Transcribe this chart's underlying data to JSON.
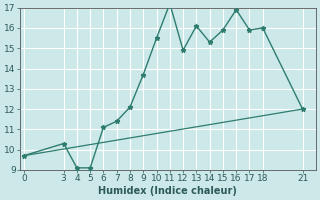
{
  "title": "",
  "xlabel": "Humidex (Indice chaleur)",
  "bg_color": "#cce8e8",
  "grid_color": "#ffffff",
  "line_color": "#2e7d6e",
  "line1_x": [
    0,
    3,
    4,
    5,
    6,
    7,
    8,
    9,
    10,
    11,
    12,
    13,
    14,
    15,
    16,
    17,
    18,
    21
  ],
  "line1_y": [
    9.7,
    10.3,
    9.1,
    9.1,
    11.1,
    11.4,
    12.1,
    13.7,
    15.5,
    17.2,
    14.9,
    16.1,
    15.3,
    15.9,
    16.9,
    15.9,
    16.0,
    12.0
  ],
  "line2_x": [
    0,
    21
  ],
  "line2_y": [
    9.7,
    12.0
  ],
  "ylim": [
    9,
    17
  ],
  "xlim": [
    -0.3,
    22
  ],
  "yticks": [
    9,
    10,
    11,
    12,
    13,
    14,
    15,
    16,
    17
  ],
  "xticks": [
    0,
    3,
    4,
    5,
    6,
    7,
    8,
    9,
    10,
    11,
    12,
    13,
    14,
    15,
    16,
    17,
    18,
    21
  ],
  "title_fontsize": 7,
  "axis_fontsize": 7,
  "tick_fontsize": 6.5
}
